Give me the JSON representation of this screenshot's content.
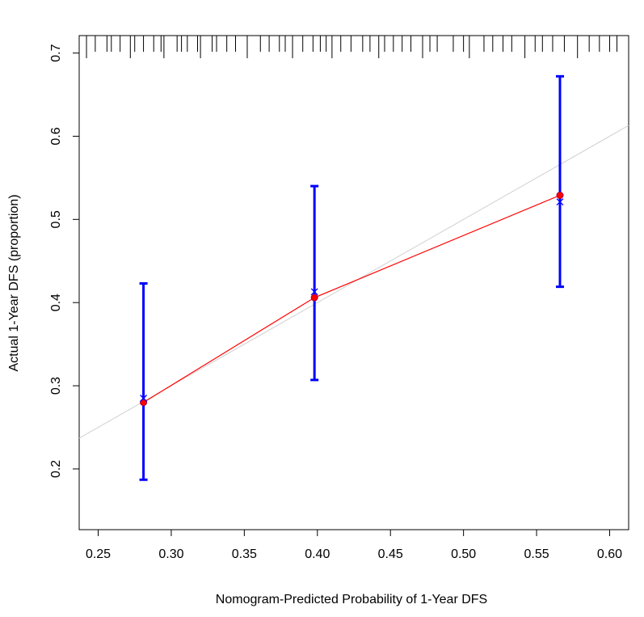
{
  "chart_data": {
    "type": "calibration",
    "xlabel": "Nomogram-Predicted Probability of 1-Year DFS",
    "ylabel": "Actual 1-Year DFS (proportion)",
    "x": [
      0.281,
      0.398,
      0.566
    ],
    "series": [
      {
        "color": "#ff0000",
        "marker": "circle",
        "values": [
          0.28,
          0.406,
          0.529
        ],
        "lower": [
          0.187,
          0.307,
          0.419
        ],
        "upper": [
          0.423,
          0.54,
          0.672
        ]
      },
      {
        "color": "#0000ff",
        "marker": "x",
        "values": [
          0.285,
          0.413,
          0.521
        ]
      }
    ],
    "error_color": "#0000ff",
    "ideal_color": "#d0d0d0",
    "xlim": [
      0.237,
      0.613
    ],
    "ylim": [
      0.127,
      0.721
    ],
    "xticks": [
      {
        "value": 0.25,
        "label": "0.25"
      },
      {
        "value": 0.3,
        "label": "0.30"
      },
      {
        "value": 0.35,
        "label": "0.35"
      },
      {
        "value": 0.4,
        "label": "0.40"
      },
      {
        "value": 0.45,
        "label": "0.45"
      },
      {
        "value": 0.5,
        "label": "0.50"
      },
      {
        "value": 0.55,
        "label": "0.55"
      },
      {
        "value": 0.6,
        "label": "0.60"
      }
    ],
    "yticks": [
      0.2,
      0.3,
      0.4,
      0.5,
      0.6,
      0.7
    ],
    "rug": [
      0.242,
      0.248,
      0.256,
      0.259,
      0.265,
      0.272,
      0.275,
      0.281,
      0.288,
      0.293,
      0.295,
      0.304,
      0.307,
      0.311,
      0.318,
      0.32,
      0.328,
      0.331,
      0.338,
      0.344,
      0.352,
      0.361,
      0.367,
      0.374,
      0.378,
      0.383,
      0.39,
      0.397,
      0.402,
      0.406,
      0.41,
      0.416,
      0.423,
      0.431,
      0.436,
      0.442,
      0.446,
      0.452,
      0.458,
      0.464,
      0.472,
      0.477,
      0.482,
      0.493,
      0.5,
      0.504,
      0.514,
      0.52,
      0.527,
      0.533,
      0.542,
      0.549,
      0.554,
      0.561,
      0.569,
      0.578,
      0.586,
      0.593,
      0.6,
      0.605
    ]
  }
}
